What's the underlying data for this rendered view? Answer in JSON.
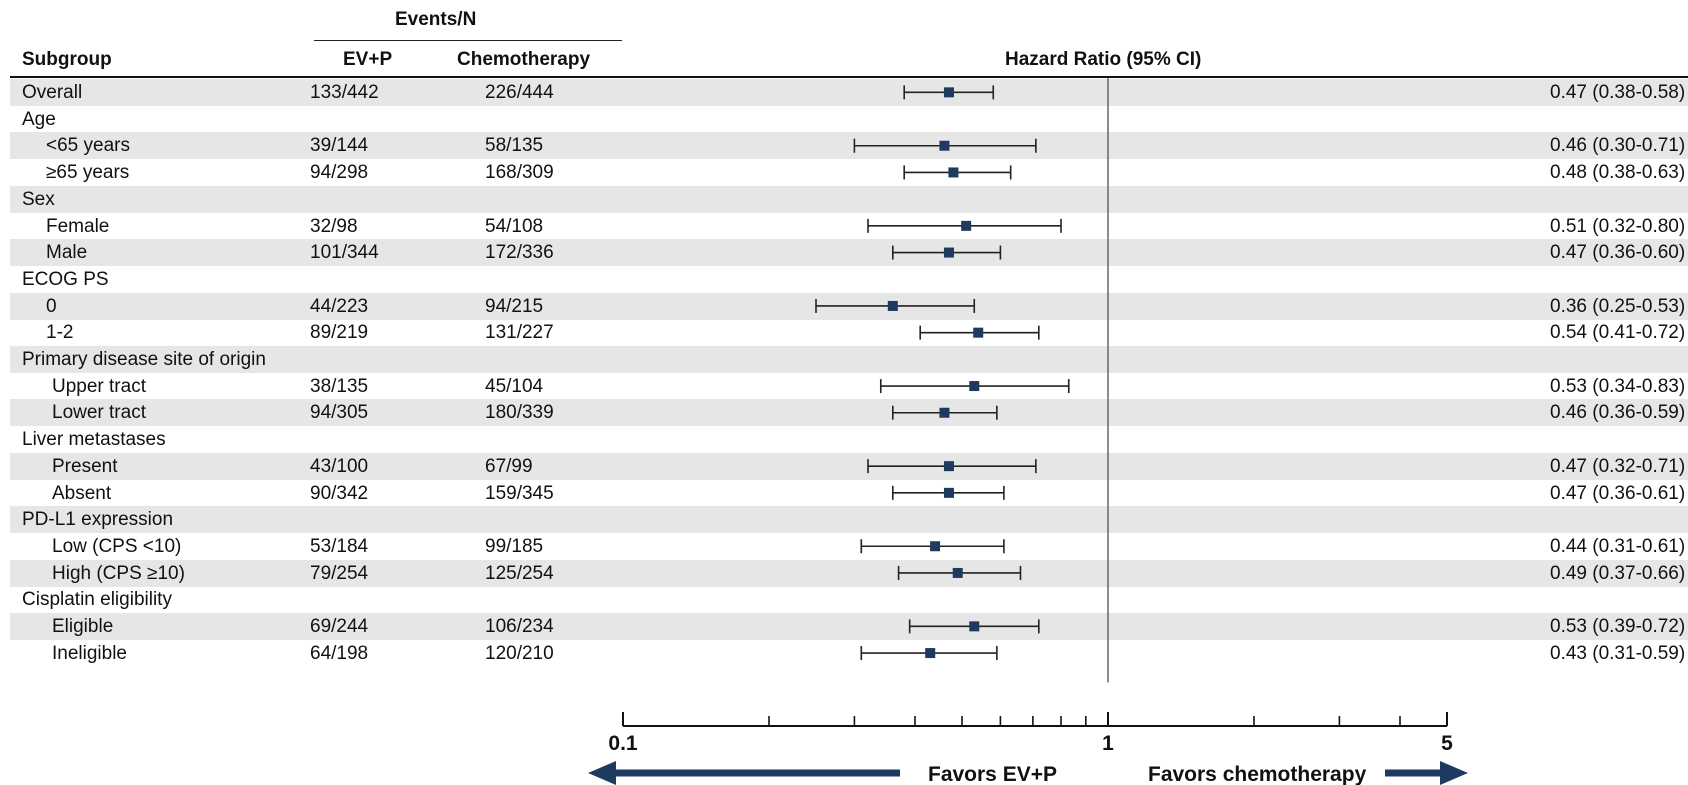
{
  "header": {
    "events_group": "Events/N",
    "subgroup": "Subgroup",
    "evp": "EV+P",
    "chemo": "Chemotherapy",
    "hr": "Hazard Ratio (95% CI)"
  },
  "axis": {
    "ticks": [
      0.1,
      1,
      5
    ],
    "tick_labels": [
      "0.1",
      "1",
      "5"
    ],
    "favors_left": "Favors EV+P",
    "favors_right": "Favors chemotherapy"
  },
  "colors": {
    "marker": "#1f3a5f",
    "arrow": "#1f3a5f",
    "shade": "#e6e6e6"
  },
  "chart_data": {
    "type": "forest",
    "title": "",
    "xlabel": "Hazard Ratio (95% CI)",
    "x_scale": "log",
    "xlim": [
      0.1,
      5
    ],
    "reference_line": 1,
    "rows": [
      {
        "label": "Overall",
        "indent": 0,
        "evp": "133/442",
        "chemo": "226/444",
        "hr": 0.47,
        "lo": 0.38,
        "hi": 0.58,
        "ci_text": "0.47 (0.38-0.58)",
        "shade": true
      },
      {
        "label": "Age",
        "indent": 0,
        "header": true,
        "shade": false
      },
      {
        "label": "<65 years",
        "indent": 1,
        "evp": "39/144",
        "chemo": "58/135",
        "hr": 0.46,
        "lo": 0.3,
        "hi": 0.71,
        "ci_text": "0.46 (0.30-0.71)",
        "shade": true
      },
      {
        "label": "≥65 years",
        "indent": 1,
        "evp": "94/298",
        "chemo": "168/309",
        "hr": 0.48,
        "lo": 0.38,
        "hi": 0.63,
        "ci_text": "0.48 (0.38-0.63)",
        "shade": false
      },
      {
        "label": "Sex",
        "indent": 0,
        "header": true,
        "shade": true
      },
      {
        "label": "Female",
        "indent": 1,
        "evp": "32/98",
        "chemo": "54/108",
        "hr": 0.51,
        "lo": 0.32,
        "hi": 0.8,
        "ci_text": "0.51 (0.32-0.80)",
        "shade": false
      },
      {
        "label": "Male",
        "indent": 1,
        "evp": "101/344",
        "chemo": "172/336",
        "hr": 0.47,
        "lo": 0.36,
        "hi": 0.6,
        "ci_text": "0.47 (0.36-0.60)",
        "shade": true
      },
      {
        "label": "ECOG PS",
        "indent": 0,
        "header": true,
        "shade": false
      },
      {
        "label": "0",
        "indent": 1,
        "evp": "44/223",
        "chemo": "94/215",
        "hr": 0.36,
        "lo": 0.25,
        "hi": 0.53,
        "ci_text": "0.36 (0.25-0.53)",
        "shade": true
      },
      {
        "label": "1-2",
        "indent": 1,
        "evp": "89/219",
        "chemo": "131/227",
        "hr": 0.54,
        "lo": 0.41,
        "hi": 0.72,
        "ci_text": "0.54 (0.41-0.72)",
        "shade": false
      },
      {
        "label": "Primary disease site of origin",
        "indent": 0,
        "header": true,
        "shade": true
      },
      {
        "label": "Upper tract",
        "indent": 2,
        "evp": "38/135",
        "chemo": "45/104",
        "hr": 0.53,
        "lo": 0.34,
        "hi": 0.83,
        "ci_text": "0.53 (0.34-0.83)",
        "shade": false
      },
      {
        "label": "Lower tract",
        "indent": 2,
        "evp": "94/305",
        "chemo": "180/339",
        "hr": 0.46,
        "lo": 0.36,
        "hi": 0.59,
        "ci_text": "0.46 (0.36-0.59)",
        "shade": true
      },
      {
        "label": "Liver metastases",
        "indent": 0,
        "header": true,
        "shade": false
      },
      {
        "label": "Present",
        "indent": 2,
        "evp": "43/100",
        "chemo": "67/99",
        "hr": 0.47,
        "lo": 0.32,
        "hi": 0.71,
        "ci_text": "0.47 (0.32-0.71)",
        "shade": true
      },
      {
        "label": "Absent",
        "indent": 2,
        "evp": "90/342",
        "chemo": "159/345",
        "hr": 0.47,
        "lo": 0.36,
        "hi": 0.61,
        "ci_text": "0.47 (0.36-0.61)",
        "shade": false
      },
      {
        "label": "PD-L1 expression",
        "indent": 0,
        "header": true,
        "shade": true
      },
      {
        "label": "Low (CPS <10)",
        "indent": 2,
        "evp": "53/184",
        "chemo": "99/185",
        "hr": 0.44,
        "lo": 0.31,
        "hi": 0.61,
        "ci_text": "0.44 (0.31-0.61)",
        "shade": false
      },
      {
        "label": "High (CPS ≥10)",
        "indent": 2,
        "evp": "79/254",
        "chemo": "125/254",
        "hr": 0.49,
        "lo": 0.37,
        "hi": 0.66,
        "ci_text": "0.49 (0.37-0.66)",
        "shade": true
      },
      {
        "label": "Cisplatin eligibility",
        "indent": 0,
        "header": true,
        "shade": false
      },
      {
        "label": "Eligible",
        "indent": 2,
        "evp": "69/244",
        "chemo": "106/234",
        "hr": 0.53,
        "lo": 0.39,
        "hi": 0.72,
        "ci_text": "0.53 (0.39-0.72)",
        "shade": true
      },
      {
        "label": "Ineligible",
        "indent": 2,
        "evp": "64/198",
        "chemo": "120/210",
        "hr": 0.43,
        "lo": 0.31,
        "hi": 0.59,
        "ci_text": "0.43 (0.31-0.59)",
        "shade": false
      }
    ]
  }
}
